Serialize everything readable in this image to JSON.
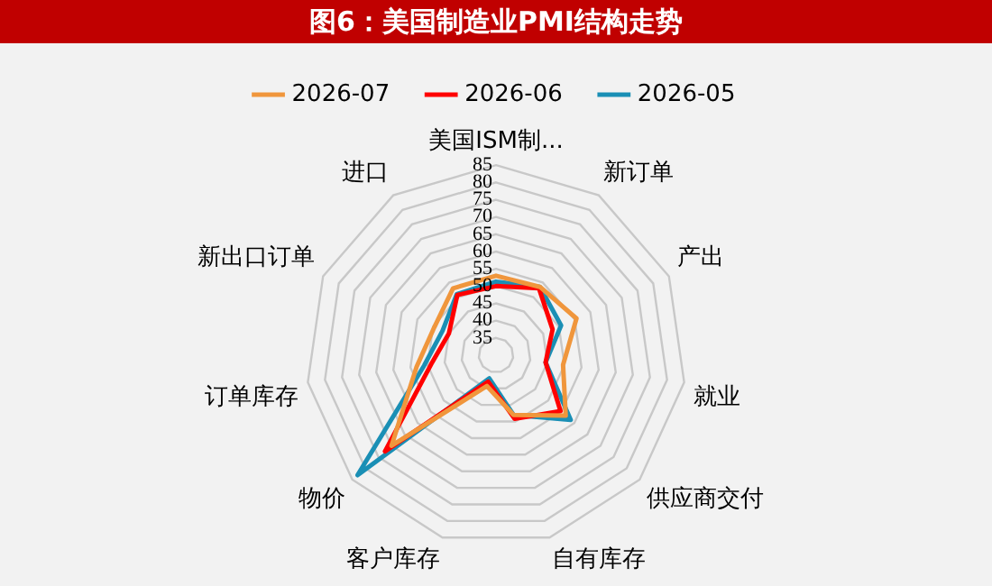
{
  "chart_data": {
    "type": "radar",
    "title": "图6：美国制造业PMI结构走势",
    "categories": [
      "美国ISM制...",
      "新订单",
      "产出",
      "就业",
      "供应商交付",
      "自有库存",
      "客户库存",
      "物价",
      "订单库存",
      "新出口订单",
      "进口"
    ],
    "series": [
      {
        "name": "2026-07",
        "color": "#f0963c",
        "values": [
          53,
          53.5,
          55.6,
          49.6,
          56.7,
          48,
          39.3,
          70,
          53.2,
          49.6,
          53
        ]
      },
      {
        "name": "2026-06",
        "color": "#ff0000",
        "values": [
          50,
          53,
          48,
          44.5,
          54.7,
          49.2,
          38,
          72.5,
          49,
          45,
          50.7
        ]
      },
      {
        "name": "2026-05",
        "color": "#1a8fb5",
        "values": [
          51.3,
          53.5,
          50.7,
          44.5,
          58.6,
          48,
          37,
          83,
          51,
          47,
          51
        ]
      }
    ],
    "ylim": [
      30,
      85
    ],
    "yticks": [
      35,
      40,
      45,
      50,
      55,
      60,
      65,
      70,
      75,
      80,
      85
    ],
    "grid": true,
    "legend": "top",
    "marker": "none",
    "line_style": "solid"
  }
}
